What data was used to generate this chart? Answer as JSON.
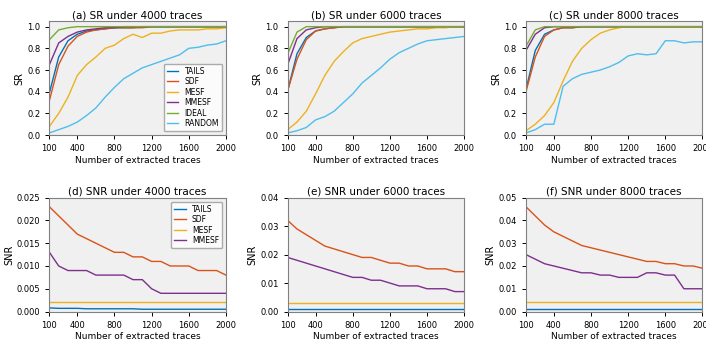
{
  "titles": [
    "(a) SR under 4000 traces",
    "(b) SR under 6000 traces",
    "(c) SR under 8000 traces",
    "(d) SNR under 4000 traces",
    "(e) SNR under 6000 traces",
    "(f) SNR under 8000 traces"
  ],
  "xlabel": "Number of extracted traces",
  "sr_ylabel": "SR",
  "snr_ylabel": "SNR",
  "x": [
    100,
    200,
    300,
    400,
    500,
    600,
    700,
    800,
    900,
    1000,
    1100,
    1200,
    1300,
    1400,
    1500,
    1600,
    1700,
    1800,
    1900,
    2000
  ],
  "sr_colors": {
    "TAILS": "#0072BD",
    "SDF": "#D95319",
    "MESF": "#EDB120",
    "MMESF": "#7E2F8E",
    "IDEAL": "#77AC30",
    "RANDOM": "#4DBEEE"
  },
  "snr_colors": {
    "TAILS": "#0072BD",
    "SDF": "#D95319",
    "MESF": "#EDB120",
    "MMESF": "#7E2F8E"
  },
  "sr_4000": {
    "TAILS": [
      0.39,
      0.72,
      0.87,
      0.93,
      0.96,
      0.97,
      0.98,
      0.99,
      0.99,
      0.99,
      1.0,
      1.0,
      1.0,
      1.0,
      1.0,
      1.0,
      1.0,
      1.0,
      1.0,
      1.0
    ],
    "SDF": [
      0.32,
      0.65,
      0.82,
      0.91,
      0.95,
      0.97,
      0.98,
      0.99,
      0.99,
      0.99,
      0.99,
      1.0,
      1.0,
      1.0,
      1.0,
      1.0,
      1.0,
      1.0,
      1.0,
      1.0
    ],
    "MESF": [
      0.08,
      0.2,
      0.35,
      0.55,
      0.65,
      0.72,
      0.8,
      0.83,
      0.89,
      0.93,
      0.9,
      0.94,
      0.94,
      0.96,
      0.97,
      0.97,
      0.97,
      0.98,
      0.98,
      0.99
    ],
    "MMESF": [
      0.65,
      0.85,
      0.91,
      0.95,
      0.97,
      0.98,
      0.99,
      0.99,
      1.0,
      1.0,
      1.0,
      1.0,
      1.0,
      1.0,
      1.0,
      1.0,
      1.0,
      1.0,
      1.0,
      1.0
    ],
    "IDEAL": [
      0.88,
      0.97,
      0.99,
      1.0,
      1.0,
      1.0,
      1.0,
      1.0,
      1.0,
      1.0,
      1.0,
      1.0,
      1.0,
      1.0,
      1.0,
      1.0,
      1.0,
      1.0,
      1.0,
      1.0
    ],
    "RANDOM": [
      0.02,
      0.05,
      0.08,
      0.12,
      0.18,
      0.25,
      0.35,
      0.44,
      0.52,
      0.57,
      0.62,
      0.65,
      0.68,
      0.71,
      0.74,
      0.8,
      0.81,
      0.83,
      0.84,
      0.87
    ]
  },
  "sr_6000": {
    "TAILS": [
      0.41,
      0.75,
      0.9,
      0.96,
      0.98,
      0.99,
      1.0,
      1.0,
      1.0,
      1.0,
      1.0,
      1.0,
      1.0,
      1.0,
      1.0,
      1.0,
      1.0,
      1.0,
      1.0,
      1.0
    ],
    "SDF": [
      0.41,
      0.7,
      0.88,
      0.96,
      0.98,
      0.99,
      1.0,
      1.0,
      1.0,
      1.0,
      1.0,
      1.0,
      1.0,
      1.0,
      1.0,
      1.0,
      1.0,
      1.0,
      1.0,
      1.0
    ],
    "MESF": [
      0.05,
      0.12,
      0.22,
      0.38,
      0.55,
      0.68,
      0.77,
      0.85,
      0.89,
      0.91,
      0.93,
      0.95,
      0.96,
      0.97,
      0.98,
      0.98,
      0.99,
      0.99,
      1.0,
      1.0
    ],
    "MMESF": [
      0.65,
      0.89,
      0.97,
      0.99,
      1.0,
      1.0,
      1.0,
      1.0,
      1.0,
      1.0,
      1.0,
      1.0,
      1.0,
      1.0,
      1.0,
      1.0,
      1.0,
      1.0,
      1.0,
      1.0
    ],
    "IDEAL": [
      0.75,
      0.95,
      1.0,
      1.0,
      1.0,
      1.0,
      1.0,
      1.0,
      1.0,
      1.0,
      1.0,
      1.0,
      1.0,
      1.0,
      1.0,
      1.0,
      1.0,
      1.0,
      1.0,
      1.0
    ],
    "RANDOM": [
      0.02,
      0.04,
      0.07,
      0.14,
      0.17,
      0.22,
      0.3,
      0.38,
      0.48,
      0.55,
      0.62,
      0.7,
      0.76,
      0.8,
      0.84,
      0.87,
      0.88,
      0.89,
      0.9,
      0.91
    ]
  },
  "sr_8000": {
    "TAILS": [
      0.42,
      0.78,
      0.93,
      0.97,
      0.99,
      0.99,
      1.0,
      1.0,
      1.0,
      1.0,
      1.0,
      1.0,
      1.0,
      1.0,
      1.0,
      1.0,
      1.0,
      1.0,
      1.0,
      1.0
    ],
    "SDF": [
      0.4,
      0.72,
      0.91,
      0.97,
      0.99,
      0.99,
      1.0,
      1.0,
      1.0,
      1.0,
      1.0,
      1.0,
      1.0,
      1.0,
      1.0,
      1.0,
      1.0,
      1.0,
      1.0,
      1.0
    ],
    "MESF": [
      0.04,
      0.1,
      0.18,
      0.3,
      0.5,
      0.68,
      0.8,
      0.88,
      0.94,
      0.97,
      0.99,
      1.0,
      1.0,
      1.0,
      1.0,
      1.0,
      1.0,
      1.0,
      1.0,
      1.0
    ],
    "MMESF": [
      0.78,
      0.93,
      0.99,
      1.0,
      1.0,
      1.0,
      1.0,
      1.0,
      1.0,
      1.0,
      1.0,
      1.0,
      1.0,
      1.0,
      1.0,
      1.0,
      1.0,
      1.0,
      1.0,
      1.0
    ],
    "IDEAL": [
      0.82,
      0.97,
      1.0,
      1.0,
      1.0,
      1.0,
      1.0,
      1.0,
      1.0,
      1.0,
      1.0,
      1.0,
      1.0,
      1.0,
      1.0,
      1.0,
      1.0,
      1.0,
      1.0,
      1.0
    ],
    "RANDOM": [
      0.02,
      0.05,
      0.1,
      0.1,
      0.45,
      0.52,
      0.56,
      0.58,
      0.6,
      0.63,
      0.67,
      0.73,
      0.75,
      0.74,
      0.75,
      0.87,
      0.87,
      0.85,
      0.86,
      0.86
    ]
  },
  "snr_4000": {
    "TAILS": [
      0.0008,
      0.0007,
      0.0007,
      0.0007,
      0.0006,
      0.0006,
      0.0006,
      0.0006,
      0.0006,
      0.0006,
      0.0005,
      0.0005,
      0.0005,
      0.0005,
      0.0005,
      0.0005,
      0.0005,
      0.0005,
      0.0005,
      0.0005
    ],
    "SDF": [
      0.023,
      0.021,
      0.019,
      0.017,
      0.016,
      0.015,
      0.014,
      0.013,
      0.013,
      0.012,
      0.012,
      0.011,
      0.011,
      0.01,
      0.01,
      0.01,
      0.009,
      0.009,
      0.009,
      0.008
    ],
    "MESF": [
      0.002,
      0.002,
      0.002,
      0.002,
      0.002,
      0.002,
      0.002,
      0.002,
      0.002,
      0.002,
      0.002,
      0.002,
      0.002,
      0.002,
      0.002,
      0.002,
      0.002,
      0.002,
      0.002,
      0.002
    ],
    "MMESF": [
      0.013,
      0.01,
      0.009,
      0.009,
      0.009,
      0.008,
      0.008,
      0.008,
      0.008,
      0.007,
      0.007,
      0.005,
      0.004,
      0.004,
      0.004,
      0.004,
      0.004,
      0.004,
      0.004,
      0.004
    ]
  },
  "snr_6000": {
    "TAILS": [
      0.001,
      0.001,
      0.001,
      0.001,
      0.001,
      0.001,
      0.001,
      0.001,
      0.001,
      0.001,
      0.001,
      0.001,
      0.001,
      0.001,
      0.001,
      0.001,
      0.001,
      0.001,
      0.001,
      0.001
    ],
    "SDF": [
      0.032,
      0.029,
      0.027,
      0.025,
      0.023,
      0.022,
      0.021,
      0.02,
      0.019,
      0.019,
      0.018,
      0.017,
      0.017,
      0.016,
      0.016,
      0.015,
      0.015,
      0.015,
      0.014,
      0.014
    ],
    "MESF": [
      0.003,
      0.003,
      0.003,
      0.003,
      0.003,
      0.003,
      0.003,
      0.003,
      0.003,
      0.003,
      0.003,
      0.003,
      0.003,
      0.003,
      0.003,
      0.003,
      0.003,
      0.003,
      0.003,
      0.003
    ],
    "MMESF": [
      0.019,
      0.018,
      0.017,
      0.016,
      0.015,
      0.014,
      0.013,
      0.012,
      0.012,
      0.011,
      0.011,
      0.01,
      0.009,
      0.009,
      0.009,
      0.008,
      0.008,
      0.008,
      0.007,
      0.007
    ]
  },
  "snr_8000": {
    "TAILS": [
      0.001,
      0.001,
      0.001,
      0.001,
      0.001,
      0.001,
      0.001,
      0.001,
      0.001,
      0.001,
      0.001,
      0.001,
      0.001,
      0.001,
      0.001,
      0.001,
      0.001,
      0.001,
      0.001,
      0.001
    ],
    "SDF": [
      0.046,
      0.042,
      0.038,
      0.035,
      0.033,
      0.031,
      0.029,
      0.028,
      0.027,
      0.026,
      0.025,
      0.024,
      0.023,
      0.022,
      0.022,
      0.021,
      0.021,
      0.02,
      0.02,
      0.019
    ],
    "MESF": [
      0.004,
      0.004,
      0.004,
      0.004,
      0.004,
      0.004,
      0.004,
      0.004,
      0.004,
      0.004,
      0.004,
      0.004,
      0.004,
      0.004,
      0.004,
      0.004,
      0.004,
      0.004,
      0.004,
      0.004
    ],
    "MMESF": [
      0.025,
      0.023,
      0.021,
      0.02,
      0.019,
      0.018,
      0.017,
      0.017,
      0.016,
      0.016,
      0.015,
      0.015,
      0.015,
      0.017,
      0.017,
      0.016,
      0.016,
      0.01,
      0.01,
      0.01
    ]
  },
  "sr_yticks": [
    0,
    0.2,
    0.4,
    0.6,
    0.8,
    1.0
  ],
  "x_ticks": [
    100,
    400,
    800,
    1200,
    1600,
    2000
  ],
  "snr_4000_yticks": [
    0,
    0.005,
    0.01,
    0.015,
    0.02,
    0.025
  ],
  "snr_6000_yticks": [
    0,
    0.01,
    0.02,
    0.03,
    0.04
  ],
  "snr_8000_yticks": [
    0,
    0.01,
    0.02,
    0.03,
    0.04,
    0.05
  ],
  "snr_4000_ylim": [
    0,
    0.025
  ],
  "snr_6000_ylim": [
    0,
    0.04
  ],
  "snr_8000_ylim": [
    0,
    0.05
  ],
  "bg_color": "#F0F0F0",
  "axes_color": "#808080"
}
